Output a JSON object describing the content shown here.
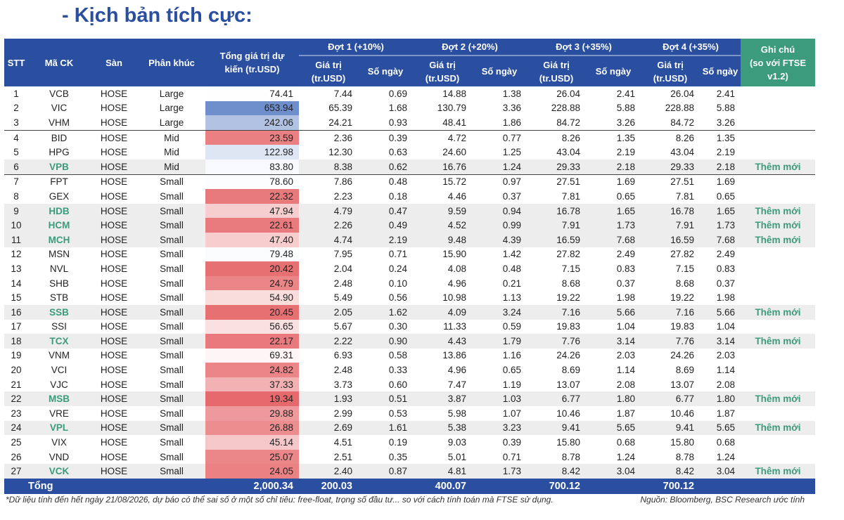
{
  "title": "- Kịch bản tích cực:",
  "colors": {
    "header": "#2a4fa0",
    "note_header": "#3c9b7c",
    "new_text": "#3c9b7c",
    "heat_low": "#e6686b",
    "heat_high": "#6f8fcc"
  },
  "headers": {
    "stt": "STT",
    "ticker": "Mã CK",
    "exchange": "Sàn",
    "segment": "Phân khúc",
    "total_l1": "Tổng giá trị dự",
    "total_l2": "kiến (tr.USD)",
    "rounds": [
      "Đợt 1 (+10%)",
      "Đợt 2 (+20%)",
      "Đợt 3 (+35%)",
      "Đợt 4 (+35%)"
    ],
    "value_l1": "Giá trị",
    "value_l2": "(tr.USD)",
    "days": "Số ngày",
    "note_l1": "Ghi chú",
    "note_l2": "(so với FTSE v1.2)"
  },
  "rows": [
    {
      "stt": "1",
      "code": "VCB",
      "exchange": "HOSE",
      "segment": "Large",
      "total": "74.41",
      "v1": "7.44",
      "d1": "0.69",
      "v2": "14.88",
      "d2": "1.38",
      "v3": "26.04",
      "d3": "2.41",
      "v4": "26.04",
      "d4": "2.41",
      "note": ""
    },
    {
      "stt": "2",
      "code": "VIC",
      "exchange": "HOSE",
      "segment": "Large",
      "total": "653.94",
      "v1": "65.39",
      "d1": "1.68",
      "v2": "130.79",
      "d2": "3.36",
      "v3": "228.88",
      "d3": "5.88",
      "v4": "228.88",
      "d4": "5.88",
      "note": ""
    },
    {
      "stt": "3",
      "code": "VHM",
      "exchange": "HOSE",
      "segment": "Large",
      "total": "242.06",
      "v1": "24.21",
      "d1": "0.93",
      "v2": "48.41",
      "d2": "1.86",
      "v3": "84.72",
      "d3": "3.26",
      "v4": "84.72",
      "d4": "3.26",
      "note": ""
    },
    {
      "stt": "4",
      "code": "BID",
      "exchange": "HOSE",
      "segment": "Mid",
      "total": "23.59",
      "v1": "2.36",
      "d1": "0.39",
      "v2": "4.72",
      "d2": "0.77",
      "v3": "8.26",
      "d3": "1.35",
      "v4": "8.26",
      "d4": "1.35",
      "note": ""
    },
    {
      "stt": "5",
      "code": "HPG",
      "exchange": "HOSE",
      "segment": "Mid",
      "total": "122.98",
      "v1": "12.30",
      "d1": "0.63",
      "v2": "24.60",
      "d2": "1.25",
      "v3": "43.04",
      "d3": "2.19",
      "v4": "43.04",
      "d4": "2.19",
      "note": ""
    },
    {
      "stt": "6",
      "code": "VPB",
      "exchange": "HOSE",
      "segment": "Mid",
      "total": "83.80",
      "v1": "8.38",
      "d1": "0.62",
      "v2": "16.76",
      "d2": "1.24",
      "v3": "29.33",
      "d3": "2.18",
      "v4": "29.33",
      "d4": "2.18",
      "note": "Thêm mới"
    },
    {
      "stt": "7",
      "code": "FPT",
      "exchange": "HOSE",
      "segment": "Small",
      "total": "78.60",
      "v1": "7.86",
      "d1": "0.48",
      "v2": "15.72",
      "d2": "0.97",
      "v3": "27.51",
      "d3": "1.69",
      "v4": "27.51",
      "d4": "1.69",
      "note": ""
    },
    {
      "stt": "8",
      "code": "GEX",
      "exchange": "HOSE",
      "segment": "Small",
      "total": "22.32",
      "v1": "2.23",
      "d1": "0.18",
      "v2": "4.46",
      "d2": "0.37",
      "v3": "7.81",
      "d3": "0.65",
      "v4": "7.81",
      "d4": "0.65",
      "note": ""
    },
    {
      "stt": "9",
      "code": "HDB",
      "exchange": "HOSE",
      "segment": "Small",
      "total": "47.94",
      "v1": "4.79",
      "d1": "0.47",
      "v2": "9.59",
      "d2": "0.94",
      "v3": "16.78",
      "d3": "1.65",
      "v4": "16.78",
      "d4": "1.65",
      "note": "Thêm mới"
    },
    {
      "stt": "10",
      "code": "HCM",
      "exchange": "HOSE",
      "segment": "Small",
      "total": "22.61",
      "v1": "2.26",
      "d1": "0.49",
      "v2": "4.52",
      "d2": "0.99",
      "v3": "7.91",
      "d3": "1.73",
      "v4": "7.91",
      "d4": "1.73",
      "note": "Thêm mới"
    },
    {
      "stt": "11",
      "code": "MCH",
      "exchange": "HOSE",
      "segment": "Small",
      "total": "47.40",
      "v1": "4.74",
      "d1": "2.19",
      "v2": "9.48",
      "d2": "4.39",
      "v3": "16.59",
      "d3": "7.68",
      "v4": "16.59",
      "d4": "7.68",
      "note": "Thêm mới"
    },
    {
      "stt": "12",
      "code": "MSN",
      "exchange": "HOSE",
      "segment": "Small",
      "total": "79.48",
      "v1": "7.95",
      "d1": "0.71",
      "v2": "15.90",
      "d2": "1.42",
      "v3": "27.82",
      "d3": "2.49",
      "v4": "27.82",
      "d4": "2.49",
      "note": ""
    },
    {
      "stt": "13",
      "code": "NVL",
      "exchange": "HOSE",
      "segment": "Small",
      "total": "20.42",
      "v1": "2.04",
      "d1": "0.24",
      "v2": "4.08",
      "d2": "0.48",
      "v3": "7.15",
      "d3": "0.83",
      "v4": "7.15",
      "d4": "0.83",
      "note": ""
    },
    {
      "stt": "14",
      "code": "SHB",
      "exchange": "HOSE",
      "segment": "Small",
      "total": "24.79",
      "v1": "2.48",
      "d1": "0.10",
      "v2": "4.96",
      "d2": "0.21",
      "v3": "8.68",
      "d3": "0.37",
      "v4": "8.68",
      "d4": "0.37",
      "note": ""
    },
    {
      "stt": "15",
      "code": "STB",
      "exchange": "HOSE",
      "segment": "Small",
      "total": "54.90",
      "v1": "5.49",
      "d1": "0.56",
      "v2": "10.98",
      "d2": "1.13",
      "v3": "19.22",
      "d3": "1.98",
      "v4": "19.22",
      "d4": "1.98",
      "note": ""
    },
    {
      "stt": "16",
      "code": "SSB",
      "exchange": "HOSE",
      "segment": "Small",
      "total": "20.45",
      "v1": "2.05",
      "d1": "1.62",
      "v2": "4.09",
      "d2": "3.24",
      "v3": "7.16",
      "d3": "5.66",
      "v4": "7.16",
      "d4": "5.66",
      "note": "Thêm mới"
    },
    {
      "stt": "17",
      "code": "SSI",
      "exchange": "HOSE",
      "segment": "Small",
      "total": "56.65",
      "v1": "5.67",
      "d1": "0.30",
      "v2": "11.33",
      "d2": "0.59",
      "v3": "19.83",
      "d3": "1.04",
      "v4": "19.83",
      "d4": "1.04",
      "note": ""
    },
    {
      "stt": "18",
      "code": "TCX",
      "exchange": "HOSE",
      "segment": "Small",
      "total": "22.17",
      "v1": "2.22",
      "d1": "0.90",
      "v2": "4.43",
      "d2": "1.79",
      "v3": "7.76",
      "d3": "3.14",
      "v4": "7.76",
      "d4": "3.14",
      "note": "Thêm mới"
    },
    {
      "stt": "19",
      "code": "VNM",
      "exchange": "HOSE",
      "segment": "Small",
      "total": "69.31",
      "v1": "6.93",
      "d1": "0.58",
      "v2": "13.86",
      "d2": "1.16",
      "v3": "24.26",
      "d3": "2.03",
      "v4": "24.26",
      "d4": "2.03",
      "note": ""
    },
    {
      "stt": "20",
      "code": "VCI",
      "exchange": "HOSE",
      "segment": "Small",
      "total": "24.82",
      "v1": "2.48",
      "d1": "0.33",
      "v2": "4.96",
      "d2": "0.65",
      "v3": "8.69",
      "d3": "1.14",
      "v4": "8.69",
      "d4": "1.14",
      "note": ""
    },
    {
      "stt": "21",
      "code": "VJC",
      "exchange": "HOSE",
      "segment": "Small",
      "total": "37.33",
      "v1": "3.73",
      "d1": "0.60",
      "v2": "7.47",
      "d2": "1.19",
      "v3": "13.07",
      "d3": "2.08",
      "v4": "13.07",
      "d4": "2.08",
      "note": ""
    },
    {
      "stt": "22",
      "code": "MSB",
      "exchange": "HOSE",
      "segment": "Small",
      "total": "19.34",
      "v1": "1.93",
      "d1": "0.51",
      "v2": "3.87",
      "d2": "1.03",
      "v3": "6.77",
      "d3": "1.80",
      "v4": "6.77",
      "d4": "1.80",
      "note": "Thêm mới"
    },
    {
      "stt": "23",
      "code": "VRE",
      "exchange": "HOSE",
      "segment": "Small",
      "total": "29.88",
      "v1": "2.99",
      "d1": "0.53",
      "v2": "5.98",
      "d2": "1.07",
      "v3": "10.46",
      "d3": "1.87",
      "v4": "10.46",
      "d4": "1.87",
      "note": ""
    },
    {
      "stt": "24",
      "code": "VPL",
      "exchange": "HOSE",
      "segment": "Small",
      "total": "26.88",
      "v1": "2.69",
      "d1": "1.61",
      "v2": "5.38",
      "d2": "3.23",
      "v3": "9.41",
      "d3": "5.65",
      "v4": "9.41",
      "d4": "5.65",
      "note": "Thêm mới"
    },
    {
      "stt": "25",
      "code": "VIX",
      "exchange": "HOSE",
      "segment": "Small",
      "total": "45.14",
      "v1": "4.51",
      "d1": "0.19",
      "v2": "9.03",
      "d2": "0.39",
      "v3": "15.80",
      "d3": "0.68",
      "v4": "15.80",
      "d4": "0.68",
      "note": ""
    },
    {
      "stt": "26",
      "code": "VND",
      "exchange": "HOSE",
      "segment": "Small",
      "total": "25.07",
      "v1": "2.51",
      "d1": "0.35",
      "v2": "5.01",
      "d2": "0.71",
      "v3": "8.78",
      "d3": "1.24",
      "v4": "8.78",
      "d4": "1.24",
      "note": ""
    },
    {
      "stt": "27",
      "code": "VCK",
      "exchange": "HOSE",
      "segment": "Small",
      "total": "24.05",
      "v1": "2.40",
      "d1": "0.87",
      "v2": "4.81",
      "d2": "1.73",
      "v3": "8.42",
      "d3": "3.04",
      "v4": "8.42",
      "d4": "3.04",
      "note": "Thêm mới"
    }
  ],
  "totals": {
    "label": "Tổng",
    "total": "2,000.34",
    "v1": "200.03",
    "v2": "400.07",
    "v3": "700.12",
    "v4": "700.12"
  },
  "footer": {
    "note": "*Dữ liệu tính đến hết ngày 21/08/2026, dự báo có thể sai số ở một số chỉ tiêu: free-float, trọng số đầu tư... so với cách tính toán mà FTSE sử dụng.",
    "source": "Nguồn: Bloomberg, BSC Research ước tính"
  }
}
